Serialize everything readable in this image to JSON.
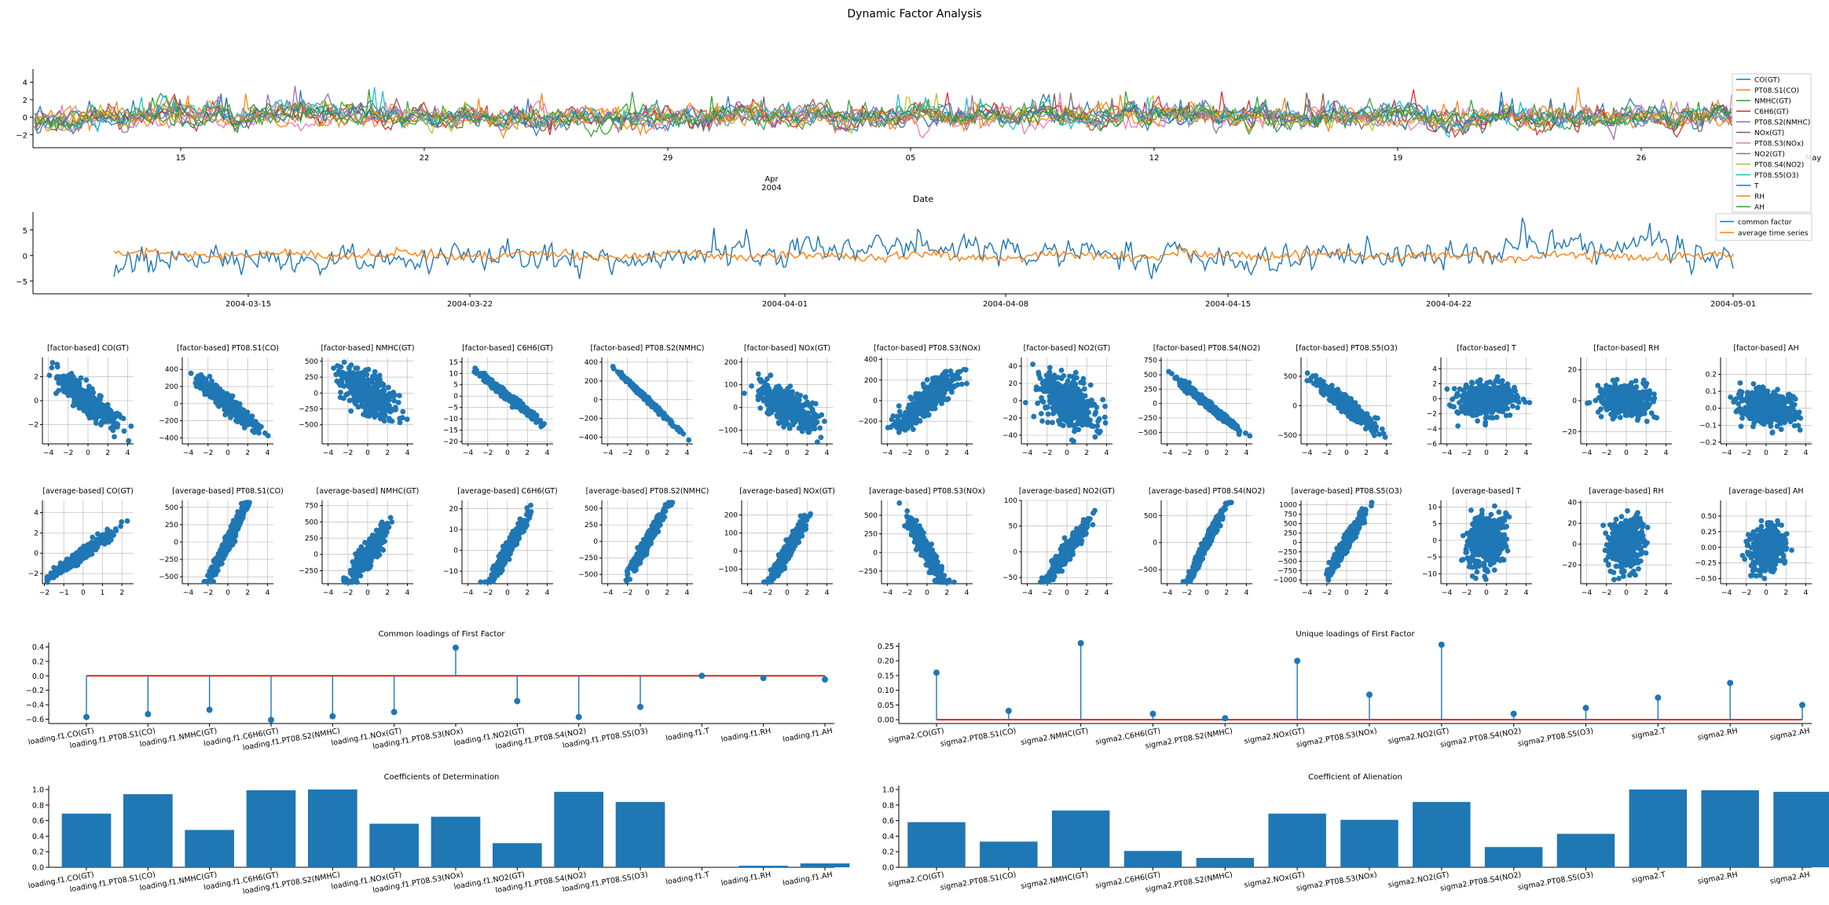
{
  "figure_title": "Dynamic Factor Analysis",
  "colors": {
    "tab": [
      "#1f77b4",
      "#ff7f0e",
      "#2ca02c",
      "#d62728",
      "#9467bd",
      "#8c564b",
      "#e377c2",
      "#7f7f7f",
      "#bcbd22",
      "#17becf"
    ],
    "accent": "#1f77b4",
    "baseline": "#d62728",
    "grid": "#b0b0b0"
  },
  "chart_data": [
    {
      "id": "ts-panel",
      "type": "line",
      "title": "",
      "xlabel": "Date",
      "xlabel_sub": [
        "Apr",
        "2004"
      ],
      "xticks": [
        "15",
        "22",
        "29",
        "05",
        "12",
        "19",
        "26",
        "May"
      ],
      "ylim": [
        -3.5,
        5.5
      ],
      "yticks": [
        -2,
        0,
        2,
        4
      ],
      "legend_position": "upper-right",
      "series": [
        {
          "name": "CO(GT)"
        },
        {
          "name": "PT08.S1(CO)"
        },
        {
          "name": "NMHC(GT)"
        },
        {
          "name": "C6H6(GT)"
        },
        {
          "name": "PT08.S2(NMHC)"
        },
        {
          "name": "NOx(GT)"
        },
        {
          "name": "PT08.S3(NOx)"
        },
        {
          "name": "NO2(GT)"
        },
        {
          "name": "PT08.S4(NO2)"
        },
        {
          "name": "PT08.S5(O3)"
        },
        {
          "name": "T"
        },
        {
          "name": "RH"
        },
        {
          "name": "AH"
        }
      ]
    },
    {
      "id": "factor-panel",
      "type": "line",
      "title": "",
      "xticks": [
        "2004-03-15",
        "2004-03-22",
        "2004-04-01",
        "2004-04-08",
        "2004-04-15",
        "2004-04-22",
        "2004-05-01"
      ],
      "ylim": [
        -7.5,
        8.5
      ],
      "yticks": [
        -5,
        0,
        5
      ],
      "legend_position": "upper-right",
      "series": [
        {
          "name": "common factor"
        },
        {
          "name": "average time series"
        }
      ]
    },
    {
      "id": "factor-scatter-row",
      "type": "scatter",
      "x_range": [
        -4.6,
        4.6
      ],
      "xticks": [
        -4,
        -2,
        0,
        2,
        4
      ],
      "panels": [
        {
          "title": "[factor-based] CO(GT)",
          "ylim": [
            -3.6,
            3.6
          ],
          "yticks": [
            -2,
            0,
            2
          ],
          "slope": -0.62,
          "noise": 0.55
        },
        {
          "title": "[factor-based] PT08.S1(CO)",
          "ylim": [
            -470,
            540
          ],
          "yticks": [
            -400,
            -200,
            0,
            200,
            400
          ],
          "slope": -95,
          "noise": 50
        },
        {
          "title": "[factor-based] NMHC(GT)",
          "ylim": [
            -800,
            560
          ],
          "yticks": [
            -500,
            -250,
            0,
            250,
            500
          ],
          "slope": -80,
          "noise": 150
        },
        {
          "title": "[factor-based] C6H6(GT)",
          "ylim": [
            -21,
            17
          ],
          "yticks": [
            -20,
            -15,
            -10,
            -5,
            0,
            5,
            10,
            15
          ],
          "slope": -3.4,
          "noise": 0.9
        },
        {
          "title": "[factor-based] PT08.S2(NMHC)",
          "ylim": [
            -470,
            450
          ],
          "yticks": [
            -400,
            -200,
            0,
            200,
            400
          ],
          "slope": -100,
          "noise": 12
        },
        {
          "title": "[factor-based] NOx(GT)",
          "ylim": [
            -160,
            220
          ],
          "yticks": [
            -100,
            0,
            100,
            200
          ],
          "slope": -24,
          "noise": 38
        },
        {
          "title": "[factor-based] PT08.S3(NOx)",
          "ylim": [
            -420,
            420
          ],
          "yticks": [
            -200,
            0,
            200,
            400
          ],
          "slope": 75,
          "noise": 70
        },
        {
          "title": "[factor-based] NO2(GT)",
          "ylim": [
            -50,
            50
          ],
          "yticks": [
            -40,
            -20,
            0,
            20,
            40
          ],
          "slope": -4.5,
          "noise": 14
        },
        {
          "title": "[factor-based] PT08.S4(NO2)",
          "ylim": [
            -700,
            800
          ],
          "yticks": [
            -500,
            -250,
            0,
            250,
            500,
            750
          ],
          "slope": -140,
          "noise": 35
        },
        {
          "title": "[factor-based] PT08.S5(O3)",
          "ylim": [
            -650,
            820
          ],
          "yticks": [
            -500,
            0,
            500
          ],
          "slope": -130,
          "noise": 70
        },
        {
          "title": "[factor-based] T",
          "ylim": [
            -6,
            5.5
          ],
          "yticks": [
            -6,
            -4,
            -2,
            0,
            2,
            4
          ],
          "slope": 0.05,
          "noise": 1.1
        },
        {
          "title": "[factor-based] RH",
          "ylim": [
            -28,
            28
          ],
          "yticks": [
            -20,
            0,
            20
          ],
          "slope": -0.3,
          "noise": 5
        },
        {
          "title": "[factor-based] AH",
          "ylim": [
            -0.21,
            0.3
          ],
          "yticks": [
            -0.2,
            -0.1,
            0.0,
            0.1,
            0.2
          ],
          "slope": -0.008,
          "noise": 0.05
        }
      ]
    },
    {
      "id": "average-scatter-row",
      "type": "scatter",
      "panels": [
        {
          "title": "[average-based] CO(GT)",
          "x_range": [
            -2.1,
            2.6
          ],
          "xticks": [
            -2,
            -1,
            0,
            1,
            2
          ],
          "ylim": [
            -3,
            5.2
          ],
          "yticks": [
            -2,
            0,
            2,
            4
          ],
          "slope": 1.35,
          "noise": 0.28,
          "xsd": 0.8
        },
        {
          "title": "[average-based] PT08.S1(CO)",
          "x_range": [
            -4.6,
            4.6
          ],
          "xticks": [
            -4,
            -2,
            0,
            2,
            4
          ],
          "ylim": [
            -600,
            600
          ],
          "yticks": [
            -500,
            -250,
            0,
            250,
            500
          ],
          "slope": 290,
          "noise": 60,
          "xsd": 0.9
        },
        {
          "title": "[average-based] NMHC(GT)",
          "x_range": [
            -4.6,
            4.6
          ],
          "xticks": [
            -4,
            -2,
            0,
            2,
            4
          ],
          "ylim": [
            -450,
            830
          ],
          "yticks": [
            -250,
            0,
            250,
            500,
            750
          ],
          "slope": 190,
          "noise": 90,
          "xsd": 0.9
        },
        {
          "title": "[average-based] C6H6(GT)",
          "x_range": [
            -4.6,
            4.6
          ],
          "xticks": [
            -4,
            -2,
            0,
            2,
            4
          ],
          "ylim": [
            -16,
            24
          ],
          "yticks": [
            -10,
            0,
            10,
            20
          ],
          "slope": 8,
          "noise": 2,
          "xsd": 0.9
        },
        {
          "title": "[average-based] PT08.S2(NMHC)",
          "x_range": [
            -4.6,
            4.6
          ],
          "xticks": [
            -4,
            -2,
            0,
            2,
            4
          ],
          "ylim": [
            -640,
            620
          ],
          "yticks": [
            -500,
            -250,
            0,
            250,
            500
          ],
          "slope": 260,
          "noise": 55,
          "xsd": 0.9
        },
        {
          "title": "[average-based] NOx(GT)",
          "x_range": [
            -4.6,
            4.6
          ],
          "xticks": [
            -4,
            -2,
            0,
            2,
            4
          ],
          "ylim": [
            -180,
            280
          ],
          "yticks": [
            -100,
            0,
            100,
            200
          ],
          "slope": 90,
          "noise": 25,
          "xsd": 0.9
        },
        {
          "title": "[average-based] PT08.S3(NOx)",
          "x_range": [
            -4.6,
            4.6
          ],
          "xticks": [
            -4,
            -2,
            0,
            2,
            4
          ],
          "ylim": [
            -420,
            700
          ],
          "yticks": [
            -250,
            0,
            250,
            500
          ],
          "slope": -220,
          "noise": 70,
          "xsd": 0.9
        },
        {
          "title": "[average-based] NO2(GT)",
          "x_range": [
            -4.6,
            4.6
          ],
          "xticks": [
            -4,
            -2,
            0,
            2,
            4
          ],
          "ylim": [
            -62,
            100
          ],
          "yticks": [
            -50,
            0,
            50,
            100
          ],
          "slope": 26,
          "noise": 9,
          "xsd": 0.9
        },
        {
          "title": "[average-based] PT08.S4(NO2)",
          "x_range": [
            -4.6,
            4.6
          ],
          "xticks": [
            -4,
            -2,
            0,
            2,
            4
          ],
          "ylim": [
            -760,
            780
          ],
          "yticks": [
            -500,
            0,
            500
          ],
          "slope": 360,
          "noise": 60,
          "xsd": 0.9
        },
        {
          "title": "[average-based] PT08.S5(O3)",
          "x_range": [
            -4.6,
            4.6
          ],
          "xticks": [
            -4,
            -2,
            0,
            2,
            4
          ],
          "ylim": [
            -1100,
            1120
          ],
          "yticks": [
            -1000,
            -750,
            -500,
            -250,
            0,
            250,
            500,
            750,
            1000
          ],
          "slope": 440,
          "noise": 110,
          "xsd": 0.9
        },
        {
          "title": "[average-based] T",
          "x_range": [
            -4.6,
            4.6
          ],
          "xticks": [
            -4,
            -2,
            0,
            2,
            4
          ],
          "ylim": [
            -13,
            12
          ],
          "yticks": [
            -10,
            -5,
            0,
            5,
            10
          ],
          "slope": 0.6,
          "noise": 4,
          "xsd": 0.9
        },
        {
          "title": "[average-based] RH",
          "x_range": [
            -4.6,
            4.6
          ],
          "xticks": [
            -4,
            -2,
            0,
            2,
            4
          ],
          "ylim": [
            -38,
            42
          ],
          "yticks": [
            -20,
            0,
            20,
            40
          ],
          "slope": 1.2,
          "noise": 12,
          "xsd": 0.9
        },
        {
          "title": "[average-based] AH",
          "x_range": [
            -4.6,
            4.6
          ],
          "xticks": [
            -4,
            -2,
            0,
            2,
            4
          ],
          "ylim": [
            -0.58,
            0.75
          ],
          "yticks": [
            -0.5,
            -0.25,
            0.0,
            0.25,
            0.5
          ],
          "slope": 0.05,
          "noise": 0.17,
          "xsd": 0.9
        }
      ]
    },
    {
      "id": "common-loadings",
      "type": "stem",
      "title": "Common loadings of First Factor",
      "ylim": [
        -0.66,
        0.46
      ],
      "yticks": [
        -0.6,
        -0.4,
        -0.2,
        0.0,
        0.2,
        0.4
      ],
      "categories": [
        "loading.f1.CO(GT)",
        "loading.f1.PT08.S1(CO)",
        "loading.f1.NMHC(GT)",
        "loading.f1.C6H6(GT)",
        "loading.f1.PT08.S2(NMHC)",
        "loading.f1.NOx(GT)",
        "loading.f1.PT08.S3(NOx)",
        "loading.f1.NO2(GT)",
        "loading.f1.PT08.S4(NO2)",
        "loading.f1.PT08.S5(O3)",
        "loading.f1.T",
        "loading.f1.RH",
        "loading.f1.AH"
      ],
      "values": [
        -0.57,
        -0.53,
        -0.47,
        -0.61,
        -0.56,
        -0.5,
        0.39,
        -0.35,
        -0.57,
        -0.43,
        0.0,
        -0.03,
        -0.05
      ]
    },
    {
      "id": "unique-loadings",
      "type": "stem",
      "title": "Unique loadings of First Factor",
      "ylim": [
        -0.013,
        0.262
      ],
      "yticks": [
        0.0,
        0.05,
        0.1,
        0.15,
        0.2,
        0.25
      ],
      "categories": [
        "sigma2.CO(GT)",
        "sigma2.PT08.S1(CO)",
        "sigma2.NMHC(GT)",
        "sigma2.C6H6(GT)",
        "sigma2.PT08.S2(NMHC)",
        "sigma2.NOx(GT)",
        "sigma2.PT08.S3(NOx)",
        "sigma2.NO2(GT)",
        "sigma2.PT08.S4(NO2)",
        "sigma2.PT08.S5(O3)",
        "sigma2.T",
        "sigma2.RH",
        "sigma2.AH"
      ],
      "values": [
        0.16,
        0.03,
        0.26,
        0.02,
        0.005,
        0.2,
        0.085,
        0.255,
        0.02,
        0.04,
        0.075,
        0.125,
        0.05
      ]
    },
    {
      "id": "determination",
      "type": "bar",
      "title": "Coefficients of Determination",
      "ylim": [
        0,
        1.05
      ],
      "yticks": [
        0.0,
        0.2,
        0.4,
        0.6,
        0.8,
        1.0
      ],
      "categories": [
        "loading.f1.CO(GT)",
        "loading.f1.PT08.S1(CO)",
        "loading.f1.NMHC(GT)",
        "loading.f1.C6H6(GT)",
        "loading.f1.PT08.S2(NMHC)",
        "loading.f1.NOx(GT)",
        "loading.f1.PT08.S3(NOx)",
        "loading.f1.NO2(GT)",
        "loading.f1.PT08.S4(NO2)",
        "loading.f1.PT08.S5(O3)",
        "loading.f1.T",
        "loading.f1.RH",
        "loading.f1.AH"
      ],
      "values": [
        0.69,
        0.94,
        0.48,
        0.99,
        1.0,
        0.56,
        0.65,
        0.31,
        0.97,
        0.84,
        0.0,
        0.02,
        0.05
      ]
    },
    {
      "id": "alienation",
      "type": "bar",
      "title": "Coefficient of Alienation",
      "ylim": [
        0,
        1.05
      ],
      "yticks": [
        0.0,
        0.2,
        0.4,
        0.6,
        0.8,
        1.0
      ],
      "categories": [
        "sigma2.CO(GT)",
        "sigma2.PT08.S1(CO)",
        "sigma2.NMHC(GT)",
        "sigma2.C6H6(GT)",
        "sigma2.PT08.S2(NMHC)",
        "sigma2.NOx(GT)",
        "sigma2.PT08.S3(NOx)",
        "sigma2.NO2(GT)",
        "sigma2.PT08.S4(NO2)",
        "sigma2.PT08.S5(O3)",
        "sigma2.T",
        "sigma2.RH",
        "sigma2.AH"
      ],
      "values": [
        0.58,
        0.33,
        0.73,
        0.21,
        0.12,
        0.69,
        0.61,
        0.84,
        0.26,
        0.43,
        1.0,
        0.99,
        0.97
      ]
    }
  ]
}
